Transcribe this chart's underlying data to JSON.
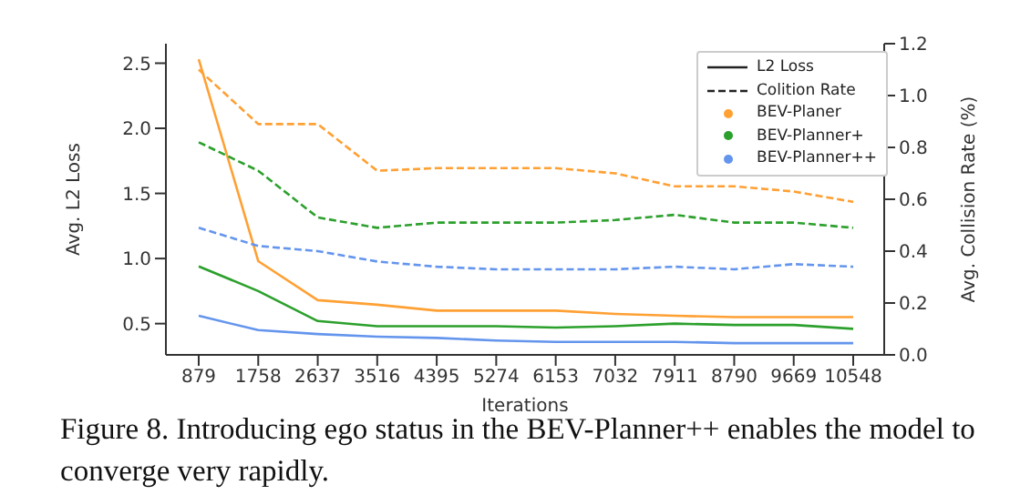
{
  "chart_data": {
    "type": "line",
    "xlabel": "Iterations",
    "ylabel": "Avg. L2 Loss",
    "y2label": "Avg. Collision Rate (%)",
    "x": [
      879,
      1758,
      2637,
      3516,
      4395,
      5274,
      6153,
      7032,
      7911,
      8790,
      9669,
      10548
    ],
    "xlim": [
      394,
      11006
    ],
    "xticks": [
      879,
      1758,
      2637,
      3516,
      4395,
      5274,
      6153,
      7032,
      7911,
      8790,
      9669,
      10548
    ],
    "ylim": [
      0.26,
      2.65
    ],
    "yticks": [
      0.5,
      {
        "value": 1,
        "label": "1.0"
      },
      1.5,
      {
        "value": 2,
        "label": "2.0"
      },
      2.5
    ],
    "y2lim": [
      0,
      1.2
    ],
    "y2ticks": [
      {
        "value": 0,
        "label": "0.0"
      },
      0.2,
      0.4,
      0.6,
      0.8,
      {
        "value": 1,
        "label": "1.0"
      },
      1.2
    ],
    "series": [
      {
        "name": "BEV-Planer",
        "color": "#ffa033",
        "line_style": "solid",
        "values": [
          2.53,
          0.98,
          0.68,
          0.645,
          0.6,
          0.6,
          0.6,
          0.575,
          0.56,
          0.55,
          0.55,
          0.55
        ]
      },
      {
        "name": "BEV-Planner+",
        "color": "#2ca02c",
        "line_style": "solid",
        "values": [
          0.94,
          0.75,
          0.52,
          0.48,
          0.48,
          0.48,
          0.47,
          0.48,
          0.5,
          0.49,
          0.49,
          0.46
        ]
      },
      {
        "name": "BEV-Planner++",
        "color": "#6495ed",
        "line_style": "solid",
        "values": [
          0.56,
          0.45,
          0.42,
          0.4,
          0.39,
          0.37,
          0.36,
          0.36,
          0.36,
          0.35,
          0.35,
          0.35
        ]
      },
      {
        "color": "#ffa033",
        "line_style": "dashed",
        "axis": "y2",
        "values": [
          1.1,
          0.89,
          0.89,
          0.71,
          0.72,
          0.72,
          0.72,
          0.7,
          0.65,
          0.65,
          0.63,
          0.59
        ]
      },
      {
        "color": "#2ca02c",
        "line_style": "dashed",
        "axis": "y2",
        "values": [
          0.82,
          0.71,
          0.53,
          0.49,
          0.51,
          0.51,
          0.51,
          0.52,
          0.54,
          0.51,
          0.51,
          0.49
        ]
      },
      {
        "color": "#6495ed",
        "line_style": "dashed",
        "axis": "y2",
        "values": [
          0.49,
          0.42,
          0.4,
          0.36,
          0.34,
          0.33,
          0.33,
          0.33,
          0.34,
          0.33,
          0.35,
          0.34
        ]
      }
    ],
    "legend": "top right",
    "marker": "none",
    "annotations": [
      "L2 Loss",
      "Colition Rate",
      "Figure 8. Introducing ego status in the BEV-Planner++ enables the model to converge very rapidly."
    ]
  }
}
